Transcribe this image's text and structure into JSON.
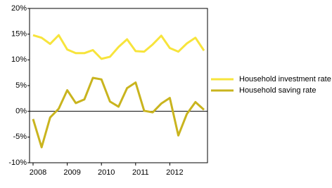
{
  "chart_data": {
    "type": "line",
    "categories": [
      "2008",
      null,
      null,
      null,
      "2009",
      null,
      null,
      null,
      "2010",
      null,
      null,
      null,
      "2011",
      null,
      null,
      null,
      "2012",
      null,
      null,
      null,
      null
    ],
    "series": [
      {
        "name": "Household investment rate",
        "color": "#f7e43c",
        "values": [
          14.8,
          14.3,
          13.1,
          14.8,
          12.0,
          11.3,
          11.3,
          11.9,
          10.2,
          10.6,
          12.5,
          14.0,
          11.7,
          11.6,
          13.0,
          14.7,
          12.3,
          11.6,
          13.2,
          14.3,
          11.8
        ]
      },
      {
        "name": "Household saving rate",
        "color": "#c9b41e",
        "values": [
          -1.5,
          -7.0,
          -1.2,
          0.5,
          4.1,
          1.6,
          2.3,
          6.5,
          6.2,
          1.9,
          0.9,
          4.5,
          5.6,
          0.1,
          -0.2,
          1.5,
          2.6,
          -4.7,
          -0.5,
          1.8,
          0.3
        ]
      }
    ],
    "ylim": [
      -10,
      20
    ],
    "yticks": [
      {
        "value": -10,
        "label": "-10%"
      },
      {
        "value": -5,
        "label": "-5%"
      },
      {
        "value": 0,
        "label": "0%"
      },
      {
        "value": 5,
        "label": "5%"
      },
      {
        "value": 10,
        "label": "10%"
      },
      {
        "value": 15,
        "label": "15%"
      },
      {
        "value": 20,
        "label": "20%"
      }
    ],
    "legend": "right"
  }
}
